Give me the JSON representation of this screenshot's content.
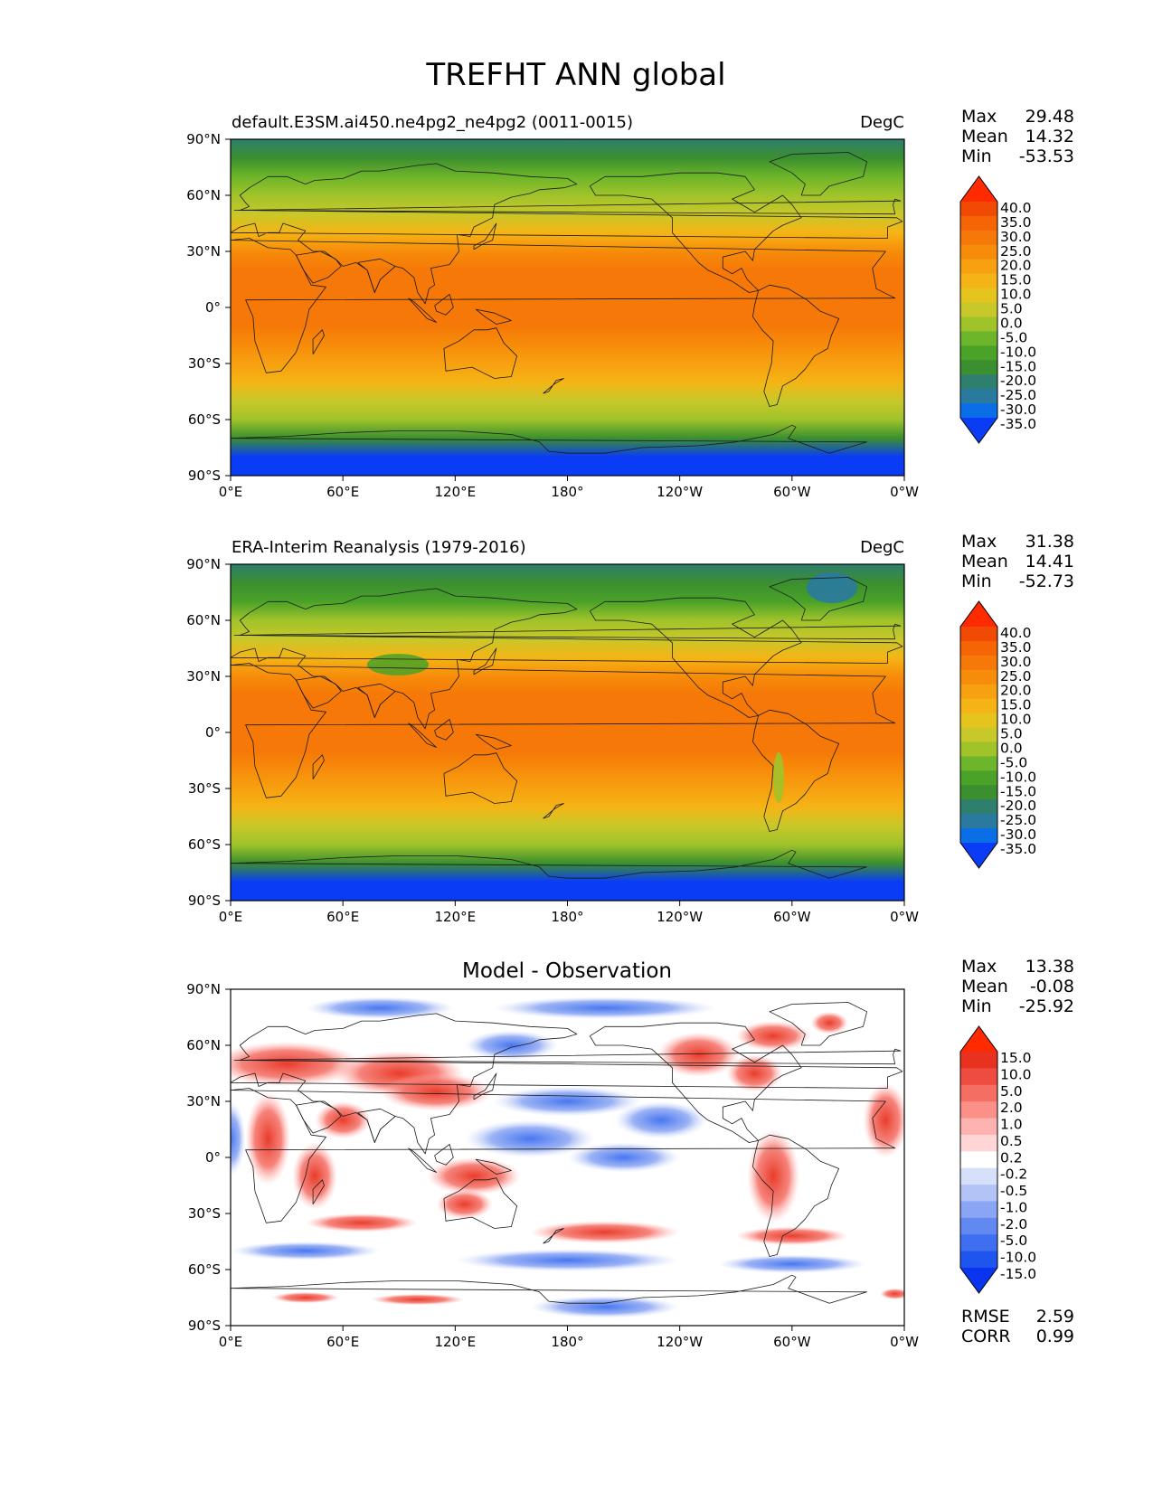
{
  "figure_title": "TREFHT ANN global",
  "colors": {
    "abs_levels": [
      "#0a3cf5",
      "#0a6ee6",
      "#2a7aa0",
      "#2e7f6e",
      "#3b8f2f",
      "#4aa228",
      "#6db52a",
      "#a0c32a",
      "#c8c82a",
      "#e6c41e",
      "#f5b415",
      "#f7a010",
      "#f78c0a",
      "#f57808",
      "#f56405",
      "#f04a05",
      "#ff2a00"
    ],
    "diff_levels": [
      "#0a34f0",
      "#1f55ef",
      "#3d6ff0",
      "#6289f2",
      "#8aa5f3",
      "#b3c3f6",
      "#d6e0fa",
      "#ffffff",
      "#ffd5d5",
      "#ffb3b0",
      "#fa9088",
      "#f46e64",
      "#ee4c40",
      "#e8321f",
      "#ff2a00"
    ]
  },
  "chart_data": [
    {
      "type": "heatmap",
      "id": "model",
      "title": "default.E3SM.ai450.ne4pg2_ne4pg2 (0011-0015)",
      "units": "DegC",
      "stats": {
        "max": "29.48",
        "mean": "14.32",
        "min": "-53.53"
      },
      "stat_labels": {
        "max": "Max",
        "mean": "Mean",
        "min": "Min"
      },
      "colorbar_levels": [
        "40.0",
        "35.0",
        "30.0",
        "25.0",
        "20.0",
        "15.0",
        "10.0",
        "5.0",
        "0.0",
        "-5.0",
        "-10.0",
        "-15.0",
        "-20.0",
        "-25.0",
        "-30.0",
        "-35.0"
      ],
      "xticks": [
        "0°E",
        "60°E",
        "120°E",
        "180°",
        "120°W",
        "60°W",
        "0°W"
      ],
      "yticks": [
        "90°N",
        "60°N",
        "30°N",
        "0°",
        "30°S",
        "60°S",
        "90°S"
      ],
      "lon_range": [
        0,
        360
      ],
      "lat_range": [
        -90,
        90
      ],
      "zonal_mean_profile": {
        "lat": [
          90,
          80,
          70,
          60,
          50,
          40,
          30,
          20,
          10,
          0,
          -10,
          -20,
          -30,
          -40,
          -50,
          -60,
          -70,
          -80,
          -90
        ],
        "value": [
          -25,
          -20,
          -10,
          -3,
          3,
          12,
          22,
          26,
          27,
          27,
          26,
          23,
          17,
          10,
          3,
          -5,
          -18,
          -40,
          -50
        ]
      }
    },
    {
      "type": "heatmap",
      "id": "obs",
      "title": "ERA-Interim Reanalysis (1979-2016)",
      "units": "DegC",
      "stats": {
        "max": "31.38",
        "mean": "14.41",
        "min": "-52.73"
      },
      "stat_labels": {
        "max": "Max",
        "mean": "Mean",
        "min": "Min"
      },
      "colorbar_levels": [
        "40.0",
        "35.0",
        "30.0",
        "25.0",
        "20.0",
        "15.0",
        "10.0",
        "5.0",
        "0.0",
        "-5.0",
        "-10.0",
        "-15.0",
        "-20.0",
        "-25.0",
        "-30.0",
        "-35.0"
      ],
      "xticks": [
        "0°E",
        "60°E",
        "120°E",
        "180°",
        "120°W",
        "60°W",
        "0°W"
      ],
      "yticks": [
        "90°N",
        "60°N",
        "30°N",
        "0°",
        "30°S",
        "60°S",
        "90°S"
      ],
      "lon_range": [
        0,
        360
      ],
      "lat_range": [
        -90,
        90
      ],
      "zonal_mean_profile": {
        "lat": [
          90,
          80,
          70,
          60,
          50,
          40,
          30,
          20,
          10,
          0,
          -10,
          -20,
          -30,
          -40,
          -50,
          -60,
          -70,
          -80,
          -90
        ],
        "value": [
          -25,
          -18,
          -12,
          -5,
          3,
          12,
          22,
          26,
          27,
          27,
          26,
          23,
          17,
          10,
          3,
          -5,
          -20,
          -42,
          -50
        ]
      }
    },
    {
      "type": "heatmap",
      "id": "diff",
      "title": "Model - Observation",
      "units": "",
      "stats": {
        "max": "13.38",
        "mean": "-0.08",
        "min": "-25.92"
      },
      "stat_labels": {
        "max": "Max",
        "mean": "Mean",
        "min": "Min"
      },
      "metrics": {
        "rmse": "2.59",
        "corr": "0.99"
      },
      "metric_labels": {
        "rmse": "RMSE",
        "corr": "CORR"
      },
      "colorbar_levels": [
        "15.0",
        "10.0",
        "5.0",
        "2.0",
        "1.0",
        "0.5",
        "0.2",
        "-0.2",
        "-0.5",
        "-1.0",
        "-2.0",
        "-5.0",
        "-10.0",
        "-15.0"
      ],
      "xticks": [
        "0°E",
        "60°E",
        "120°E",
        "180°",
        "120°W",
        "60°W",
        "0°W"
      ],
      "yticks": [
        "90°N",
        "60°N",
        "30°N",
        "0°",
        "30°S",
        "60°S",
        "90°S"
      ],
      "lon_range": [
        0,
        360
      ],
      "lat_range": [
        -90,
        90
      ]
    }
  ]
}
